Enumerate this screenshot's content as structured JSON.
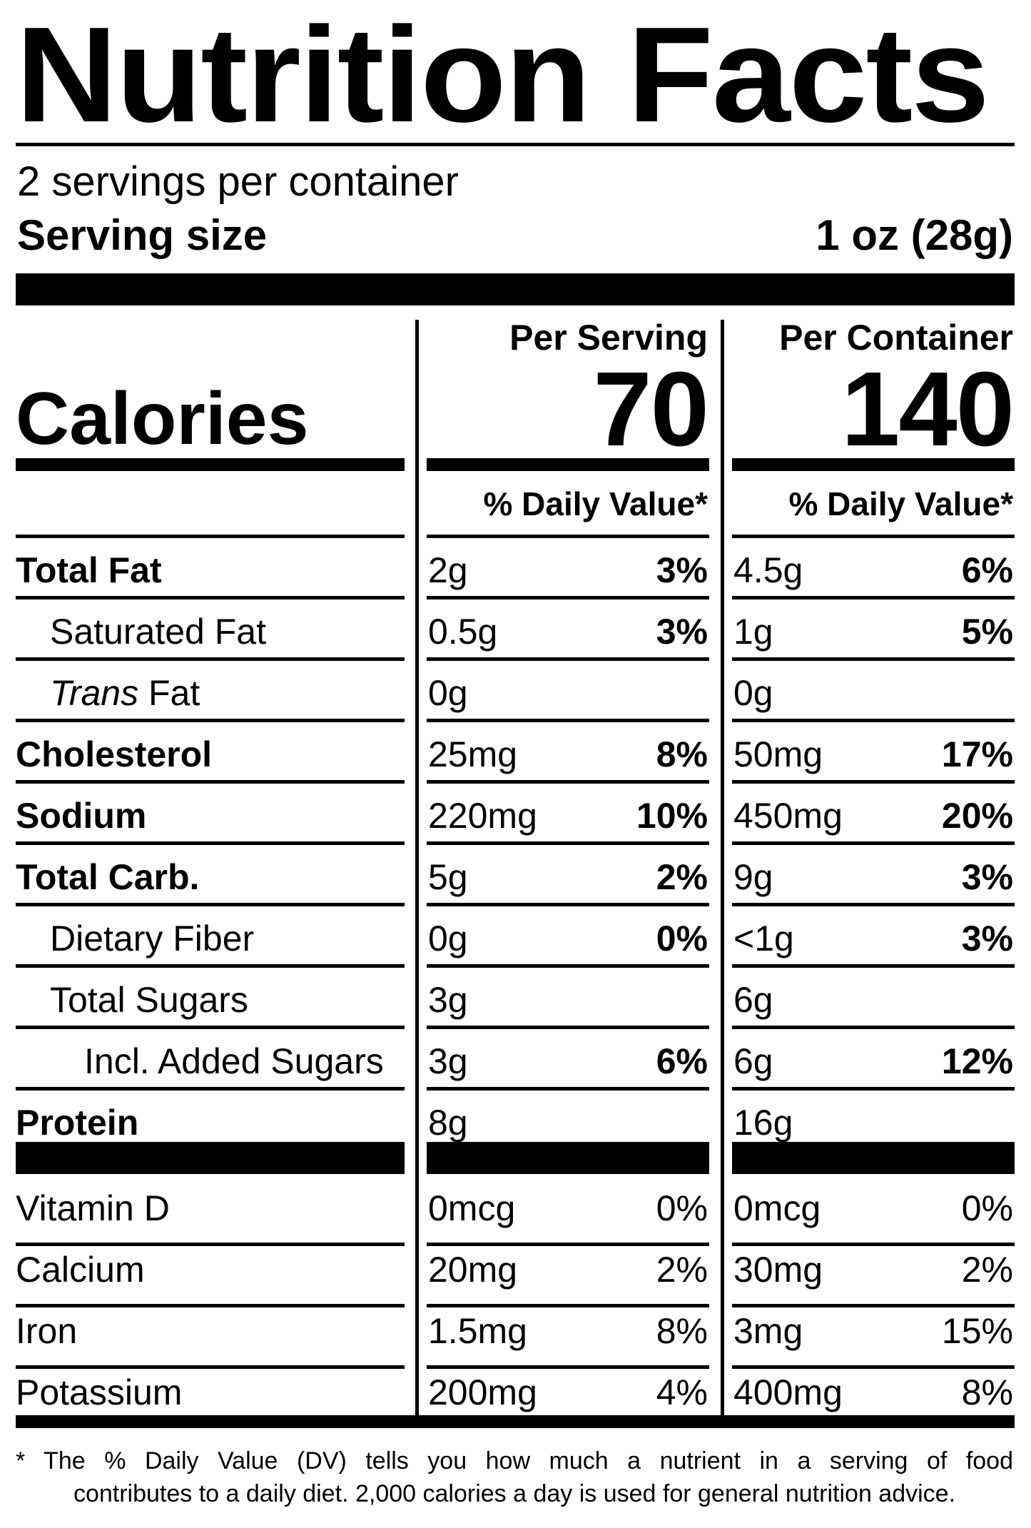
{
  "title": "Nutrition Facts",
  "servings_per_container": "2 servings per container",
  "serving_size_label": "Serving size",
  "serving_size_value": "1 oz (28g)",
  "calories_label": "Calories",
  "columns": [
    {
      "header": "Per Serving",
      "calories": "70",
      "dv_header": "% Daily Value*"
    },
    {
      "header": "Per Container",
      "calories": "140",
      "dv_header": "% Daily Value*"
    }
  ],
  "nutrients": [
    {
      "label": "Total Fat",
      "style": "bold",
      "indent": 0,
      "serving": {
        "amount": "2g",
        "dv": "3%"
      },
      "container": {
        "amount": "4.5g",
        "dv": "6%"
      }
    },
    {
      "label": "Saturated Fat",
      "style": "normal",
      "indent": 1,
      "serving": {
        "amount": "0.5g",
        "dv": "3%"
      },
      "container": {
        "amount": "1g",
        "dv": "5%"
      }
    },
    {
      "label": "Trans",
      "label_suffix": " Fat",
      "style": "italic-prefix",
      "indent": 1,
      "serving": {
        "amount": "0g",
        "dv": ""
      },
      "container": {
        "amount": "0g",
        "dv": ""
      }
    },
    {
      "label": "Cholesterol",
      "style": "bold",
      "indent": 0,
      "serving": {
        "amount": "25mg",
        "dv": "8%"
      },
      "container": {
        "amount": "50mg",
        "dv": "17%"
      }
    },
    {
      "label": "Sodium",
      "style": "bold",
      "indent": 0,
      "serving": {
        "amount": "220mg",
        "dv": "10%"
      },
      "container": {
        "amount": "450mg",
        "dv": "20%"
      }
    },
    {
      "label": "Total Carb.",
      "style": "bold",
      "indent": 0,
      "serving": {
        "amount": "5g",
        "dv": "2%"
      },
      "container": {
        "amount": "9g",
        "dv": "3%"
      }
    },
    {
      "label": "Dietary Fiber",
      "style": "normal",
      "indent": 1,
      "serving": {
        "amount": "0g",
        "dv": "0%"
      },
      "container": {
        "amount": "<1g",
        "dv": "3%"
      }
    },
    {
      "label": "Total Sugars",
      "style": "normal",
      "indent": 1,
      "serving": {
        "amount": "3g",
        "dv": ""
      },
      "container": {
        "amount": "6g",
        "dv": ""
      }
    },
    {
      "label": "Incl. Added Sugars",
      "style": "normal",
      "indent": 2,
      "serving": {
        "amount": "3g",
        "dv": "6%"
      },
      "container": {
        "amount": "6g",
        "dv": "12%"
      }
    },
    {
      "label": "Protein",
      "style": "bold",
      "indent": 0,
      "serving": {
        "amount": "8g",
        "dv": ""
      },
      "container": {
        "amount": "16g",
        "dv": ""
      }
    }
  ],
  "vitamins": [
    {
      "label": "Vitamin D",
      "serving": {
        "amount": "0mcg",
        "dv": "0%"
      },
      "container": {
        "amount": "0mcg",
        "dv": "0%"
      }
    },
    {
      "label": "Calcium",
      "serving": {
        "amount": "20mg",
        "dv": "2%"
      },
      "container": {
        "amount": "30mg",
        "dv": "2%"
      }
    },
    {
      "label": "Iron",
      "serving": {
        "amount": "1.5mg",
        "dv": "8%"
      },
      "container": {
        "amount": "3mg",
        "dv": "15%"
      }
    },
    {
      "label": "Potassium",
      "serving": {
        "amount": "200mg",
        "dv": "4%"
      },
      "container": {
        "amount": "400mg",
        "dv": "8%"
      }
    }
  ],
  "footnote": {
    "line1": "* The % Daily Value (DV) tells you how much a nutrient in a serving of food",
    "line2": "contributes to a daily diet. 2,000 calories a day is used for general nutrition advice."
  }
}
